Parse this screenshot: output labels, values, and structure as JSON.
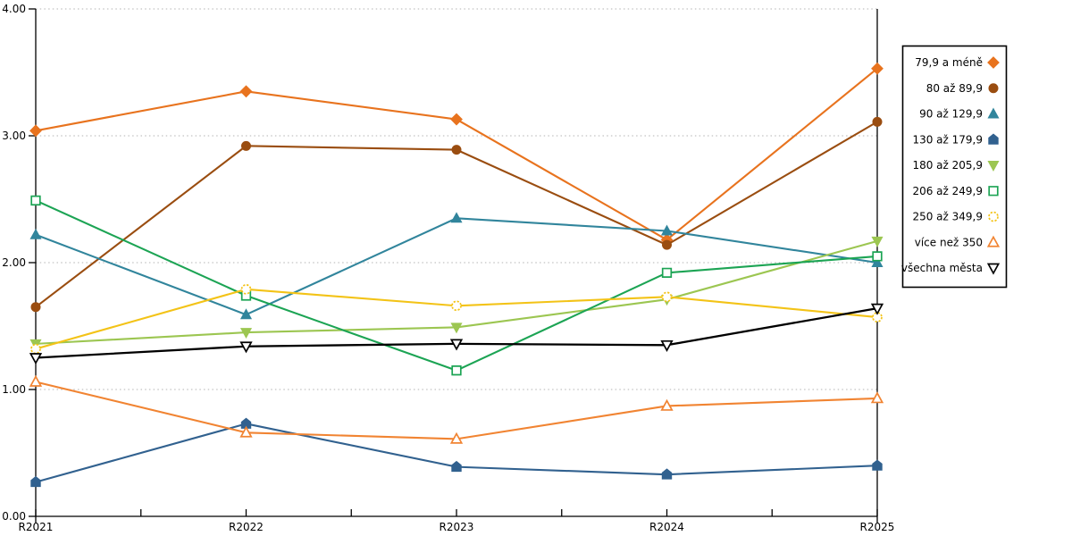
{
  "chart_data": {
    "type": "line",
    "title": "",
    "xlabel": "",
    "ylabel": "",
    "x_categories": [
      "R2021",
      "R2022",
      "R2023",
      "R2024",
      "R2025"
    ],
    "y_tick_labels": [
      "0.00",
      "1.00",
      "2.00",
      "3.00",
      "4.00"
    ],
    "ylim": [
      0,
      4
    ],
    "grid": "horizontal dotted gridlines at 1.00, 2.00, 3.00, 4.00",
    "gridline_color": "#b3b3b3",
    "axis_color": "#000000",
    "legend_position": "right",
    "legend_border_color": "#000000",
    "series": [
      {
        "name": "79,9 a méně",
        "marker": "diamond",
        "marker_style": "filled",
        "color": "#e8731e",
        "values": [
          3.04,
          3.35,
          3.13,
          2.18,
          3.53
        ]
      },
      {
        "name": "80 až 89,9",
        "marker": "circle",
        "marker_style": "filled",
        "color": "#9a4d10",
        "values": [
          1.65,
          2.92,
          2.89,
          2.14,
          3.11
        ]
      },
      {
        "name": "90 až 129,9",
        "marker": "triangle-up",
        "marker_style": "filled",
        "color": "#31859c",
        "values": [
          2.22,
          1.59,
          2.35,
          2.25,
          2.0
        ]
      },
      {
        "name": "130 až 179,9",
        "marker": "pentagon",
        "marker_style": "filled",
        "color": "#31618f",
        "values": [
          0.27,
          0.73,
          0.39,
          0.33,
          0.4
        ]
      },
      {
        "name": "180 až 205,9",
        "marker": "triangle-down",
        "marker_style": "filled",
        "color": "#9cc651",
        "values": [
          1.36,
          1.45,
          1.49,
          1.71,
          2.17
        ]
      },
      {
        "name": "206 až 249,9",
        "marker": "square",
        "marker_style": "hollow",
        "color": "#1ca454",
        "values": [
          2.49,
          1.74,
          1.15,
          1.92,
          2.05
        ]
      },
      {
        "name": "250 až 349,9",
        "marker": "circle",
        "marker_style": "hollow-dashed",
        "color": "#f3c317",
        "values": [
          1.32,
          1.79,
          1.66,
          1.73,
          1.57
        ]
      },
      {
        "name": "více než 350",
        "marker": "triangle-up",
        "marker_style": "hollow",
        "color": "#f18432",
        "values": [
          1.06,
          0.66,
          0.61,
          0.87,
          0.93
        ]
      },
      {
        "name": "všechna města",
        "marker": "triangle-down",
        "marker_style": "hollow",
        "color": "#000000",
        "values": [
          1.25,
          1.34,
          1.36,
          1.35,
          1.64
        ]
      }
    ]
  }
}
